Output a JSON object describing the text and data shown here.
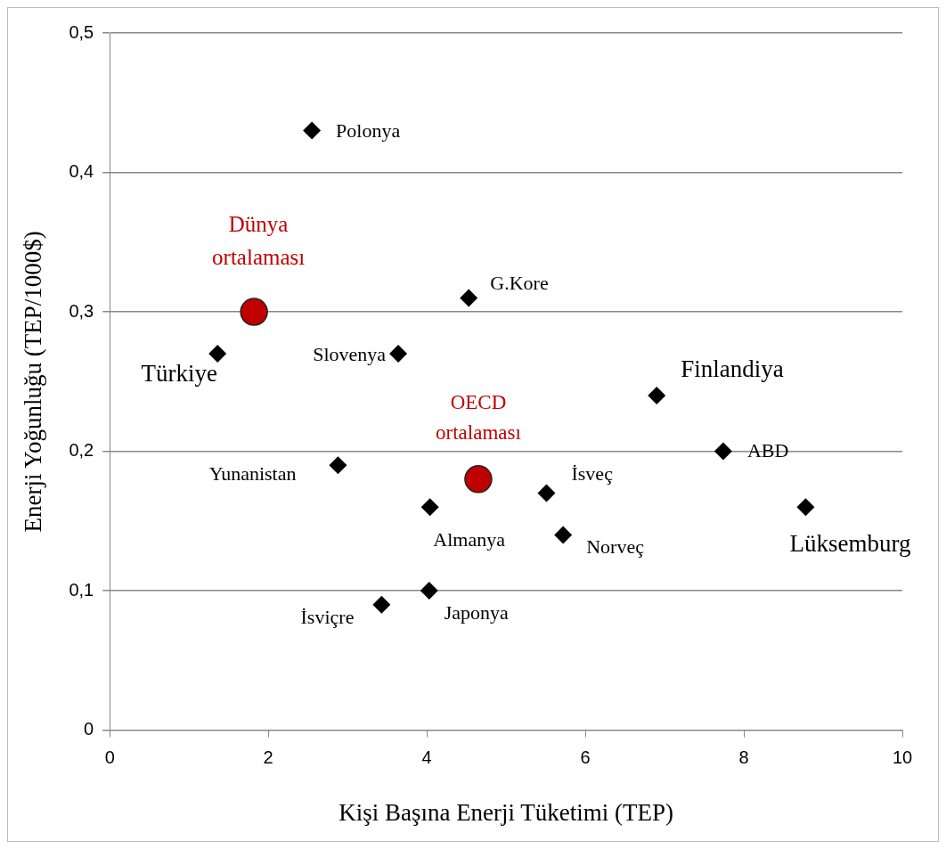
{
  "chart_data": {
    "type": "scatter",
    "xlabel": "Kişi Başına Enerji Tüketimi (TEP)",
    "ylabel": "Enerji Yoğunluğu (TEP/1000$)",
    "xlim": [
      0,
      10
    ],
    "xticks": [
      0,
      2,
      4,
      6,
      8,
      10
    ],
    "ylim": [
      0,
      0.5
    ],
    "yticks": [
      {
        "value": 0,
        "label": "0"
      },
      {
        "value": 0.1,
        "label": "0,1"
      },
      {
        "value": 0.2,
        "label": "0,2"
      },
      {
        "value": 0.3,
        "label": "0,3"
      },
      {
        "value": 0.4,
        "label": "0,4"
      },
      {
        "value": 0.5,
        "label": "0,5"
      }
    ],
    "grid": "y",
    "legend": false,
    "series": [
      {
        "name": "Polonya",
        "color": "#000000",
        "marker": "diamond",
        "x": [
          2.55
        ],
        "values": [
          0.43
        ]
      },
      {
        "name": "G.Kore",
        "color": "#000000",
        "marker": "diamond",
        "x": [
          4.53
        ],
        "values": [
          0.31
        ]
      },
      {
        "name": "Dünya ortalaması",
        "color": "#c00000",
        "marker": "circle",
        "x": [
          1.82
        ],
        "values": [
          0.3
        ]
      },
      {
        "name": "Türkiye",
        "color": "#000000",
        "marker": "diamond",
        "x": [
          1.36
        ],
        "values": [
          0.27
        ]
      },
      {
        "name": "Slovenya",
        "color": "#000000",
        "marker": "diamond",
        "x": [
          3.64
        ],
        "values": [
          0.27
        ]
      },
      {
        "name": "Finlandiya",
        "color": "#000000",
        "marker": "diamond",
        "x": [
          6.9
        ],
        "values": [
          0.24
        ]
      },
      {
        "name": "ABD",
        "color": "#000000",
        "marker": "diamond",
        "x": [
          7.74
        ],
        "values": [
          0.2
        ]
      },
      {
        "name": "Yunanistan",
        "color": "#000000",
        "marker": "diamond",
        "x": [
          2.88
        ],
        "values": [
          0.19
        ]
      },
      {
        "name": "OECD ortalaması",
        "color": "#c00000",
        "marker": "circle",
        "x": [
          4.65
        ],
        "values": [
          0.18
        ]
      },
      {
        "name": "İsveç",
        "color": "#000000",
        "marker": "diamond",
        "x": [
          5.51
        ],
        "values": [
          0.17
        ]
      },
      {
        "name": "Almanya",
        "color": "#000000",
        "marker": "diamond",
        "x": [
          4.04
        ],
        "values": [
          0.16
        ]
      },
      {
        "name": "Lüksemburg",
        "color": "#000000",
        "marker": "diamond",
        "x": [
          8.78
        ],
        "values": [
          0.16
        ]
      },
      {
        "name": "Norveç",
        "color": "#000000",
        "marker": "diamond",
        "x": [
          5.72
        ],
        "values": [
          0.14
        ]
      },
      {
        "name": "Japonya",
        "color": "#000000",
        "marker": "diamond",
        "x": [
          4.03
        ],
        "values": [
          0.1
        ]
      },
      {
        "name": "İsviçre",
        "color": "#000000",
        "marker": "diamond",
        "x": [
          3.43
        ],
        "values": [
          0.09
        ]
      }
    ]
  }
}
